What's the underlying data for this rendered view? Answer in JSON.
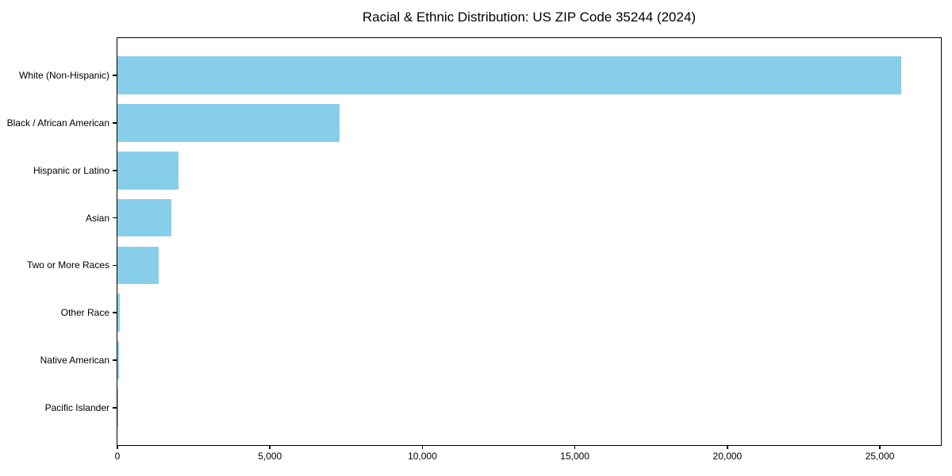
{
  "chart_data": {
    "type": "bar",
    "orientation": "horizontal",
    "title": "Racial & Ethnic Distribution: US ZIP Code 35244 (2024)",
    "categories": [
      "White (Non-Hispanic)",
      "Black / African American",
      "Hispanic or Latino",
      "Asian",
      "Two or More Races",
      "Other Race",
      "Native American",
      "Pacific Islander"
    ],
    "values": [
      25700,
      7280,
      2000,
      1770,
      1350,
      85,
      45,
      10
    ],
    "xlabel": "",
    "ylabel": "",
    "xlim": [
      0,
      27000
    ],
    "xticks": [
      0,
      5000,
      10000,
      15000,
      20000,
      25000
    ],
    "xtick_labels": [
      "0",
      "5,000",
      "10,000",
      "15,000",
      "20,000",
      "25,000"
    ],
    "bar_color": "#87CEEB",
    "spine_color": "#000000",
    "grid": false,
    "legend_position": "none"
  }
}
